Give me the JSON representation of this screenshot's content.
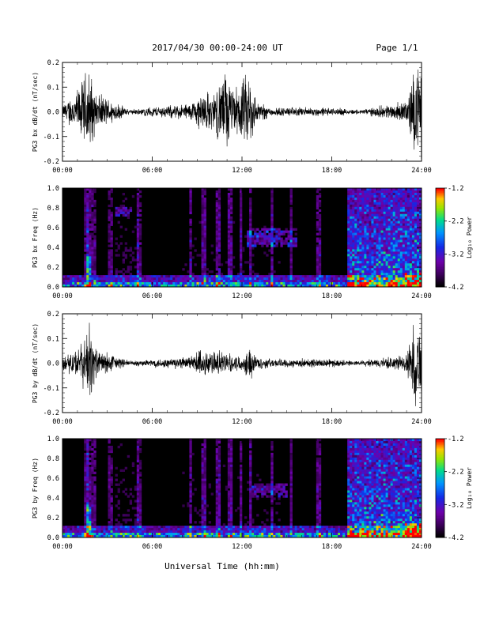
{
  "header": {
    "title": "2017/04/30  00:00-24:00 UT",
    "page": "Page 1/1"
  },
  "xlabel": "Universal Time (hh:mm)",
  "x_ticks": [
    "00:00",
    "06:00",
    "12:00",
    "18:00",
    "24:00"
  ],
  "colorbar": {
    "label": "Log₁₀ Power",
    "ticks": [
      "-1.2",
      "-2.2",
      "-3.2",
      "-4.2"
    ]
  },
  "chart_data": [
    {
      "type": "line",
      "ylabel": "PG3 bx dB/dt (nT/sec)",
      "xlim": [
        0,
        24
      ],
      "ylim": [
        -0.2,
        0.2
      ],
      "y_ticks": [
        "0.2",
        "0.1",
        "0.0",
        "-0.1",
        "-0.2"
      ],
      "series": [
        {
          "x_hours": [
            0,
            1.2,
            1.6,
            1.8,
            2.2,
            4.5,
            8.5,
            9.0,
            9.5,
            10.0,
            11.0,
            11.3,
            12.0,
            12.5,
            13.0,
            14.0,
            17.0,
            20.0,
            23.0,
            23.5,
            24.0
          ],
          "amplitude": [
            0.03,
            0.12,
            0.2,
            0.2,
            0.09,
            0.01,
            0.04,
            0.07,
            0.1,
            0.08,
            0.2,
            0.1,
            0.14,
            0.2,
            0.05,
            0.02,
            0.02,
            0.01,
            0.05,
            0.2,
            0.2
          ]
        }
      ]
    },
    {
      "type": "heatmap",
      "ylabel": "PG3 bx Freq (Hz)",
      "xlim": [
        0,
        24
      ],
      "ylim": [
        0,
        1
      ],
      "y_ticks": [
        "1.0",
        "0.8",
        "0.6",
        "0.4",
        "0.2",
        "0.0"
      ],
      "zlim": [
        -4.2,
        -1.2
      ]
    },
    {
      "type": "line",
      "ylabel": "PG3 by dB/dt (nT/sec)",
      "xlim": [
        0,
        24
      ],
      "ylim": [
        -0.2,
        0.2
      ],
      "y_ticks": [
        "0.2",
        "0.1",
        "0.0",
        "-0.1",
        "-0.2"
      ],
      "series": [
        {
          "x_hours": [
            0,
            1.2,
            1.6,
            1.8,
            2.2,
            4.5,
            8.5,
            9.0,
            9.5,
            10.0,
            11.0,
            11.3,
            12.0,
            12.5,
            13.0,
            14.0,
            17.0,
            20.0,
            23.0,
            23.5,
            24.0
          ],
          "amplitude": [
            0.03,
            0.08,
            0.14,
            0.2,
            0.07,
            0.01,
            0.03,
            0.06,
            0.07,
            0.06,
            0.05,
            0.04,
            0.03,
            0.08,
            0.03,
            0.02,
            0.02,
            0.01,
            0.04,
            0.2,
            0.16
          ]
        }
      ]
    },
    {
      "type": "heatmap",
      "ylabel": "PG3 by Freq (Hz)",
      "xlim": [
        0,
        24
      ],
      "ylim": [
        0,
        1
      ],
      "y_ticks": [
        "1.0",
        "0.8",
        "0.6",
        "0.4",
        "0.2",
        "0.0"
      ],
      "zlim": [
        -4.2,
        -1.2
      ]
    }
  ]
}
